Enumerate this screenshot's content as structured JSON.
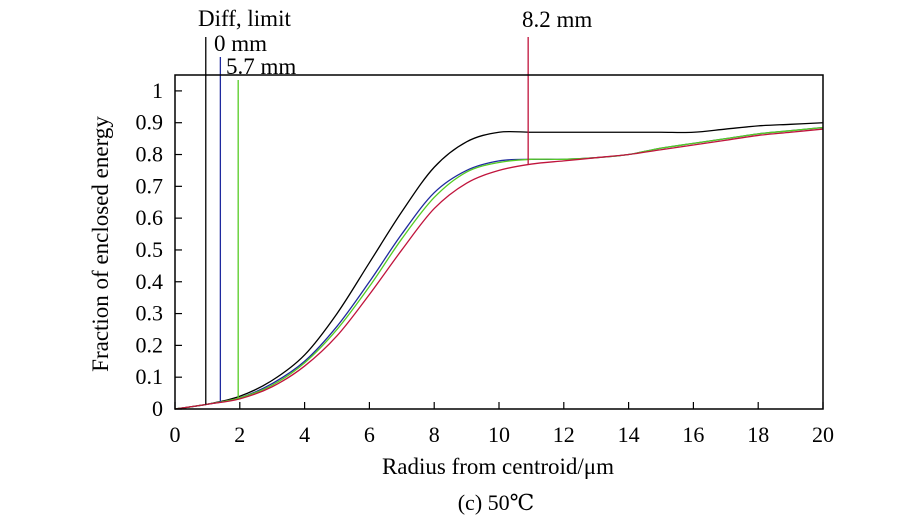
{
  "chart_data": {
    "type": "line",
    "title": "",
    "caption": "(c) 50℃",
    "xlabel": "Radius from centroid/μm",
    "ylabel": "Fraction of enclosed energy",
    "xlim": [
      0,
      20
    ],
    "ylim": [
      0,
      1.05
    ],
    "x_ticks": [
      "0",
      "2",
      "4",
      "6",
      "8",
      "10",
      "12",
      "14",
      "16",
      "18",
      "20"
    ],
    "y_ticks": [
      "0",
      "0.1",
      "0.2",
      "0.3",
      "0.4",
      "0.5",
      "0.6",
      "0.7",
      "0.8",
      "0.9",
      "1"
    ],
    "grid": false,
    "x": [
      0,
      1,
      2,
      3,
      4,
      5,
      6,
      7,
      8,
      9,
      10,
      11,
      12,
      13,
      14,
      15,
      16,
      17,
      18,
      19,
      20
    ],
    "series": [
      {
        "name": "Diff, limit",
        "color": "#000000",
        "marker_x": 0.95,
        "values": [
          0.0,
          0.015,
          0.04,
          0.09,
          0.17,
          0.3,
          0.46,
          0.62,
          0.76,
          0.84,
          0.87,
          0.87,
          0.87,
          0.87,
          0.87,
          0.87,
          0.87,
          0.88,
          0.89,
          0.895,
          0.9
        ]
      },
      {
        "name": "0 mm",
        "color": "#1f2a9e",
        "marker_x": 1.4,
        "values": [
          0.0,
          0.015,
          0.035,
          0.08,
          0.15,
          0.26,
          0.4,
          0.55,
          0.68,
          0.75,
          0.78,
          0.785,
          0.785,
          0.79,
          0.8,
          0.82,
          0.835,
          0.85,
          0.865,
          0.875,
          0.885
        ]
      },
      {
        "name": "5.7 mm",
        "color": "#55cc22",
        "marker_x": 1.95,
        "values": [
          0.0,
          0.015,
          0.035,
          0.075,
          0.145,
          0.25,
          0.385,
          0.535,
          0.665,
          0.745,
          0.775,
          0.785,
          0.785,
          0.79,
          0.8,
          0.82,
          0.835,
          0.85,
          0.865,
          0.875,
          0.885
        ]
      },
      {
        "name": "8.2 mm",
        "color": "#c0143c",
        "marker_x": 10.9,
        "values": [
          0.0,
          0.015,
          0.032,
          0.07,
          0.135,
          0.23,
          0.36,
          0.5,
          0.63,
          0.71,
          0.75,
          0.77,
          0.78,
          0.79,
          0.8,
          0.815,
          0.83,
          0.845,
          0.86,
          0.87,
          0.88
        ]
      }
    ]
  }
}
